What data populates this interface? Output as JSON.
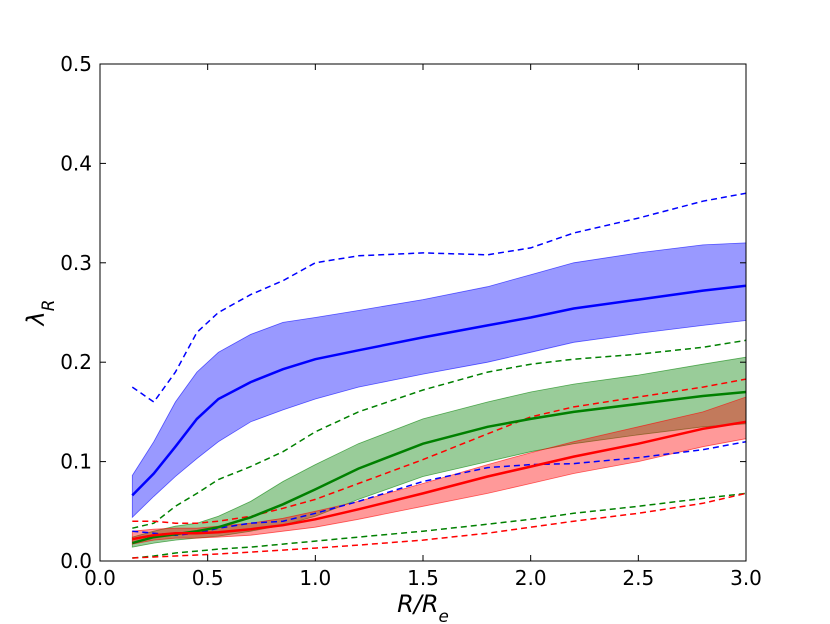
{
  "chart_data": {
    "type": "line",
    "xlabel": "R/R_e",
    "ylabel": "λ_R",
    "xlim": [
      0.0,
      3.0
    ],
    "ylim": [
      0.0,
      0.5
    ],
    "xticks": [
      "0.0",
      "0.5",
      "1.0",
      "1.5",
      "2.0",
      "2.5",
      "3.0"
    ],
    "yticks": [
      "0.0",
      "0.1",
      "0.2",
      "0.3",
      "0.4",
      "0.5"
    ],
    "grid": false,
    "legend": "none",
    "series": [
      {
        "color": "#0000ff",
        "x": [
          0.15,
          0.25,
          0.35,
          0.45,
          0.55,
          0.7,
          0.85,
          1.0,
          1.2,
          1.5,
          1.8,
          2.0,
          2.2,
          2.5,
          2.8,
          3.0
        ],
        "median": [
          0.066,
          0.088,
          0.115,
          0.143,
          0.163,
          0.18,
          0.193,
          0.203,
          0.212,
          0.225,
          0.237,
          0.245,
          0.254,
          0.263,
          0.272,
          0.277
        ],
        "band_upper": [
          0.086,
          0.12,
          0.16,
          0.19,
          0.21,
          0.228,
          0.24,
          0.245,
          0.252,
          0.263,
          0.276,
          0.288,
          0.3,
          0.31,
          0.318,
          0.32
        ],
        "band_lower": [
          0.044,
          0.065,
          0.085,
          0.103,
          0.12,
          0.14,
          0.152,
          0.163,
          0.175,
          0.188,
          0.2,
          0.21,
          0.22,
          0.229,
          0.237,
          0.242
        ],
        "dashed_upper": [
          0.175,
          0.16,
          0.19,
          0.23,
          0.25,
          0.268,
          0.282,
          0.3,
          0.307,
          0.31,
          0.308,
          0.315,
          0.33,
          0.345,
          0.362,
          0.37
        ],
        "dashed_lower": [
          0.03,
          0.028,
          0.026,
          0.028,
          0.033,
          0.038,
          0.04,
          0.048,
          0.06,
          0.08,
          0.094,
          0.097,
          0.098,
          0.104,
          0.112,
          0.12
        ]
      },
      {
        "color": "#008000",
        "x": [
          0.15,
          0.25,
          0.35,
          0.45,
          0.55,
          0.7,
          0.85,
          1.0,
          1.2,
          1.5,
          1.8,
          2.0,
          2.2,
          2.5,
          2.8,
          3.0
        ],
        "median": [
          0.018,
          0.024,
          0.027,
          0.03,
          0.034,
          0.044,
          0.057,
          0.072,
          0.093,
          0.118,
          0.135,
          0.143,
          0.15,
          0.158,
          0.166,
          0.17
        ],
        "band_upper": [
          0.024,
          0.03,
          0.035,
          0.038,
          0.045,
          0.06,
          0.08,
          0.097,
          0.118,
          0.143,
          0.16,
          0.17,
          0.178,
          0.187,
          0.198,
          0.205
        ],
        "band_lower": [
          0.014,
          0.018,
          0.021,
          0.023,
          0.025,
          0.03,
          0.036,
          0.045,
          0.062,
          0.085,
          0.1,
          0.11,
          0.118,
          0.127,
          0.135,
          0.138
        ],
        "dashed_upper": [
          0.033,
          0.038,
          0.055,
          0.068,
          0.082,
          0.095,
          0.11,
          0.13,
          0.15,
          0.172,
          0.19,
          0.198,
          0.203,
          0.208,
          0.215,
          0.222
        ],
        "dashed_lower": [
          0.003,
          0.005,
          0.008,
          0.01,
          0.012,
          0.014,
          0.017,
          0.02,
          0.024,
          0.03,
          0.037,
          0.042,
          0.048,
          0.055,
          0.063,
          0.068
        ]
      },
      {
        "color": "#ff0000",
        "x": [
          0.15,
          0.25,
          0.35,
          0.45,
          0.55,
          0.7,
          0.85,
          1.0,
          1.2,
          1.5,
          1.8,
          2.0,
          2.2,
          2.5,
          2.8,
          3.0
        ],
        "median": [
          0.022,
          0.026,
          0.028,
          0.028,
          0.029,
          0.032,
          0.036,
          0.042,
          0.052,
          0.068,
          0.085,
          0.095,
          0.105,
          0.118,
          0.133,
          0.14
        ],
        "band_upper": [
          0.03,
          0.032,
          0.033,
          0.033,
          0.035,
          0.038,
          0.043,
          0.05,
          0.06,
          0.078,
          0.097,
          0.109,
          0.12,
          0.135,
          0.15,
          0.165
        ],
        "band_lower": [
          0.017,
          0.021,
          0.023,
          0.023,
          0.024,
          0.026,
          0.03,
          0.034,
          0.042,
          0.055,
          0.068,
          0.078,
          0.088,
          0.1,
          0.115,
          0.123
        ],
        "dashed_upper": [
          0.04,
          0.04,
          0.038,
          0.038,
          0.04,
          0.045,
          0.053,
          0.062,
          0.078,
          0.102,
          0.128,
          0.145,
          0.155,
          0.165,
          0.175,
          0.183
        ],
        "dashed_lower": [
          0.003,
          0.004,
          0.005,
          0.006,
          0.007,
          0.009,
          0.011,
          0.013,
          0.016,
          0.021,
          0.028,
          0.034,
          0.04,
          0.048,
          0.058,
          0.068
        ]
      }
    ]
  }
}
